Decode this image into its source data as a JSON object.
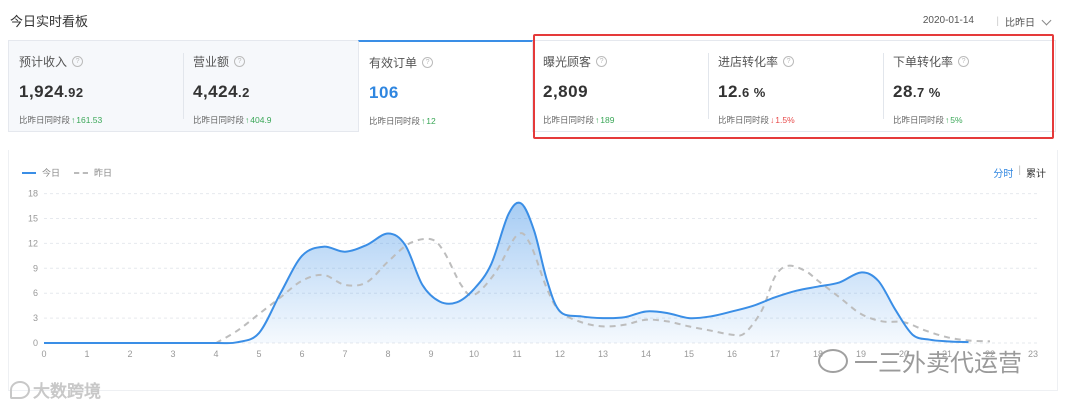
{
  "header": {
    "title": "今日实时看板",
    "date": "2020-01-14",
    "compare_label": "比昨日"
  },
  "cards": [
    {
      "label": "预计收入",
      "value_int": "1,924",
      "value_dec": ".92",
      "unit": "",
      "compare_label": "比昨日同时段",
      "arrow": "↑",
      "delta": "161.53",
      "trend": "up"
    },
    {
      "label": "营业额",
      "value_int": "4,424",
      "value_dec": ".2",
      "unit": "",
      "compare_label": "比昨日同时段",
      "arrow": "↑",
      "delta": "404.9",
      "trend": "up"
    },
    {
      "label": "有效订单",
      "value_int": "106",
      "value_dec": "",
      "unit": "",
      "compare_label": "比昨日同时段",
      "arrow": "↑",
      "delta": "12",
      "trend": "up"
    },
    {
      "label": "曝光顾客",
      "value_int": "2,809",
      "value_dec": "",
      "unit": "",
      "compare_label": "比昨日同时段",
      "arrow": "↑",
      "delta": "189",
      "trend": "up"
    },
    {
      "label": "进店转化率",
      "value_int": "12",
      "value_dec": ".6",
      "unit": "%",
      "compare_label": "比昨日同时段",
      "arrow": "↓",
      "delta": "1.5%",
      "trend": "down"
    },
    {
      "label": "下单转化率",
      "value_int": "28",
      "value_dec": ".7",
      "unit": "%",
      "compare_label": "比昨日同时段",
      "arrow": "↑",
      "delta": "5%",
      "trend": "up"
    }
  ],
  "chart_controls": {
    "legend_today": "今日",
    "legend_yesterday": "昨日",
    "toggle_hourly": "分时",
    "toggle_cumulative": "累计"
  },
  "chart_data": {
    "type": "area",
    "x_ticks": [
      "0",
      "1",
      "2",
      "3",
      "4",
      "5",
      "6",
      "7",
      "8",
      "9",
      "10",
      "11",
      "12",
      "13",
      "14",
      "15",
      "16",
      "17",
      "18",
      "19",
      "20",
      "21",
      "22",
      "23"
    ],
    "y_ticks": [
      "0",
      "3",
      "6",
      "9",
      "12",
      "15",
      "18"
    ],
    "ylim": [
      0,
      18
    ],
    "xlim": [
      0,
      23
    ],
    "grid": true,
    "series": [
      {
        "name": "今日",
        "style": "solid-area",
        "color": "#3a8ee6",
        "points": [
          [
            0,
            0
          ],
          [
            1,
            0
          ],
          [
            2,
            0
          ],
          [
            3,
            0
          ],
          [
            4,
            0
          ],
          [
            4.5,
            0.1
          ],
          [
            5,
            1.2
          ],
          [
            5.5,
            6
          ],
          [
            6,
            10.5
          ],
          [
            6.5,
            11.6
          ],
          [
            7,
            11.0
          ],
          [
            7.5,
            11.8
          ],
          [
            8,
            13.2
          ],
          [
            8.4,
            11.8
          ],
          [
            8.8,
            7
          ],
          [
            9.2,
            5
          ],
          [
            9.6,
            4.9
          ],
          [
            10,
            6.5
          ],
          [
            10.4,
            9.5
          ],
          [
            10.8,
            15.5
          ],
          [
            11.1,
            16.8
          ],
          [
            11.4,
            13.5
          ],
          [
            11.7,
            7.5
          ],
          [
            12,
            3.8
          ],
          [
            12.5,
            3.2
          ],
          [
            13,
            3.0
          ],
          [
            13.5,
            3.1
          ],
          [
            14,
            3.8
          ],
          [
            14.5,
            3.6
          ],
          [
            15,
            3.0
          ],
          [
            15.5,
            3.2
          ],
          [
            16,
            3.8
          ],
          [
            16.5,
            4.5
          ],
          [
            17,
            5.5
          ],
          [
            17.5,
            6.3
          ],
          [
            18,
            6.8
          ],
          [
            18.5,
            7.3
          ],
          [
            19,
            8.5
          ],
          [
            19.4,
            7.5
          ],
          [
            19.8,
            4.0
          ],
          [
            20.2,
            1.0
          ],
          [
            20.6,
            0.4
          ],
          [
            21,
            0.2
          ],
          [
            21.5,
            0.1
          ]
        ]
      },
      {
        "name": "昨日",
        "style": "dashed",
        "color": "#bdbdbd",
        "points": [
          [
            4,
            0
          ],
          [
            4.5,
            1.5
          ],
          [
            5,
            3.5
          ],
          [
            5.5,
            5.5
          ],
          [
            6,
            7.5
          ],
          [
            6.5,
            8.2
          ],
          [
            7,
            7.0
          ],
          [
            7.5,
            7.3
          ],
          [
            8,
            9.8
          ],
          [
            8.5,
            12.0
          ],
          [
            9,
            12.5
          ],
          [
            9.3,
            11.0
          ],
          [
            9.7,
            7.0
          ],
          [
            10,
            5.8
          ],
          [
            10.5,
            8.5
          ],
          [
            11,
            13.0
          ],
          [
            11.3,
            12.0
          ],
          [
            11.7,
            6.5
          ],
          [
            12,
            3.8
          ],
          [
            12.5,
            2.5
          ],
          [
            13,
            2.0
          ],
          [
            13.5,
            2.2
          ],
          [
            14,
            2.8
          ],
          [
            14.5,
            2.6
          ],
          [
            15,
            2.0
          ],
          [
            15.5,
            1.5
          ],
          [
            16,
            1.0
          ],
          [
            16.3,
            1.2
          ],
          [
            16.7,
            4.0
          ],
          [
            17,
            8.0
          ],
          [
            17.3,
            9.3
          ],
          [
            17.7,
            8.7
          ],
          [
            18,
            7.5
          ],
          [
            18.5,
            5.5
          ],
          [
            19,
            3.5
          ],
          [
            19.5,
            2.6
          ],
          [
            20,
            2.5
          ],
          [
            20.5,
            1.5
          ],
          [
            21,
            0.7
          ],
          [
            21.5,
            0.3
          ],
          [
            22,
            0.2
          ]
        ]
      }
    ]
  },
  "watermarks": {
    "left": "大数跨境",
    "right": "一三外卖代运营"
  },
  "colors": {
    "accent": "#2f86e0",
    "up": "#3aa757",
    "down": "#e84a4a",
    "highlight": "#e53a3a"
  }
}
